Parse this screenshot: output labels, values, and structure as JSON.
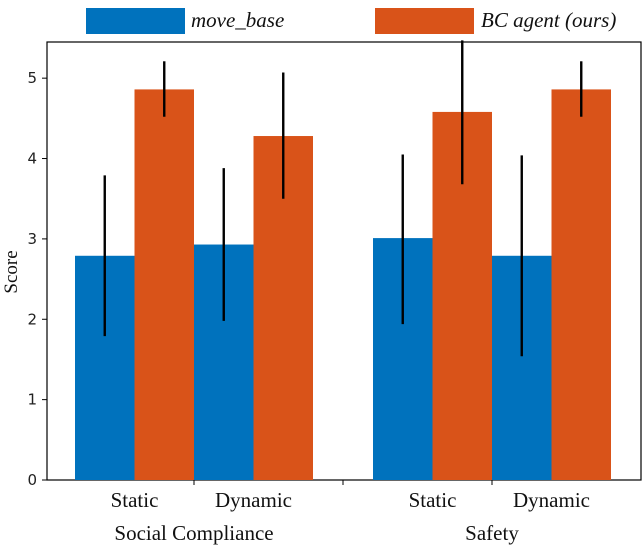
{
  "chart_data": {
    "type": "bar",
    "title": "",
    "xlabel": "",
    "ylabel": "Score",
    "ylim": [
      0,
      5.45
    ],
    "yticks": [
      0,
      1,
      2,
      3,
      4,
      5
    ],
    "grid": false,
    "legend_position": "top",
    "groups": [
      {
        "label": "Social Compliance",
        "categories": [
          "Static",
          "Dynamic"
        ]
      },
      {
        "label": "Safety",
        "categories": [
          "Static",
          "Dynamic"
        ]
      }
    ],
    "series": [
      {
        "name": "move_base",
        "color": "#0072BD",
        "values": [
          2.79,
          2.93,
          3.01,
          2.79
        ],
        "error_low": [
          1.79,
          1.98,
          1.94,
          1.54
        ],
        "error_high": [
          3.79,
          3.88,
          4.05,
          4.04
        ]
      },
      {
        "name": "BC agent (ours)",
        "color": "#D95319",
        "values": [
          4.86,
          4.28,
          4.58,
          4.86
        ],
        "error_low": [
          4.52,
          3.5,
          3.68,
          4.52
        ],
        "error_high": [
          5.21,
          5.07,
          5.47,
          5.21
        ]
      }
    ]
  }
}
